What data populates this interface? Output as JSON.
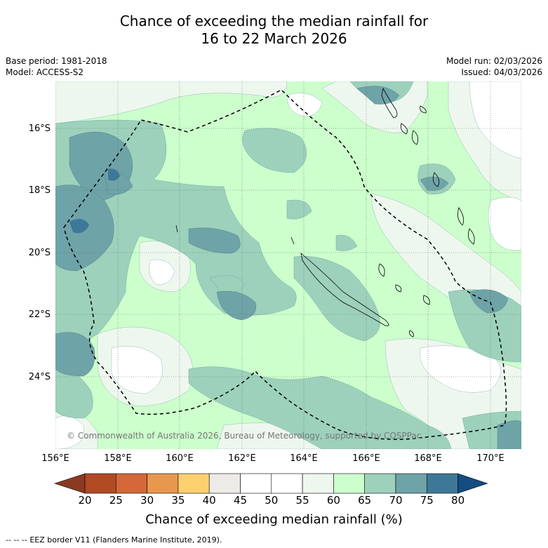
{
  "title": {
    "line1": "Chance of exceeding the median rainfall for",
    "line2": "16 to 22 March 2026"
  },
  "meta": {
    "base_period": "Base period: 1981-2018",
    "model": "Model: ACCESS-S2",
    "model_run": "Model run: 02/03/2026",
    "issued": "Issued: 04/03/2026"
  },
  "map": {
    "lat_labels": [
      "16°S",
      "18°S",
      "20°S",
      "22°S",
      "24°S"
    ],
    "lon_labels": [
      "156°E",
      "158°E",
      "160°E",
      "162°E",
      "164°E",
      "166°E",
      "168°E",
      "170°E"
    ],
    "copyright": "© Commonwealth of Australia 2026, Bureau of Meteorology, supported by COSPPac",
    "border_label": "EEZ border V11 (Flanders Marine Institute, 2019)."
  },
  "colorbar": {
    "title": "Chance of exceeding median rainfall (%)",
    "ticks": [
      "20",
      "25",
      "30",
      "35",
      "40",
      "45",
      "50",
      "55",
      "60",
      "65",
      "70",
      "75",
      "80"
    ],
    "colors": [
      "#8b3a22",
      "#b24a24",
      "#d4683a",
      "#e8974f",
      "#fdd06f",
      "#ecebe7",
      "#ffffff",
      "#ffffff",
      "#eef7ee",
      "#ccffcc",
      "#9dd1bb",
      "#6ea3a8",
      "#3e7899",
      "#134c80"
    ]
  },
  "footnote": {
    "prefix": "--  --  --",
    "text": "EEZ border V11 (Flanders Marine Institute, 2019)."
  }
}
